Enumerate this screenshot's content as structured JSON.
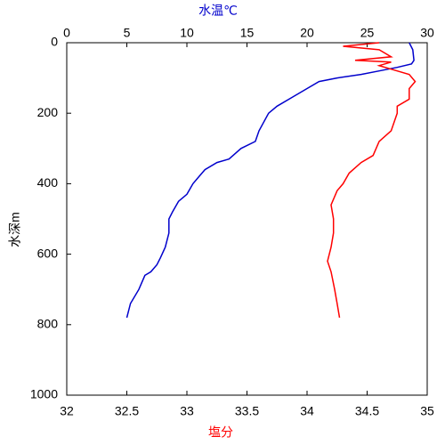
{
  "chart_data": {
    "type": "profile",
    "y_label": "水深m",
    "x2_label": "水温℃",
    "x_label": "塩分",
    "ylim": [
      0,
      1000
    ],
    "yticks": [
      0,
      200,
      400,
      600,
      800,
      1000
    ],
    "y_inverted": true,
    "x2lim": [
      0,
      30
    ],
    "x2ticks": [
      0,
      5,
      10,
      15,
      20,
      25,
      30
    ],
    "xlim": [
      32,
      35
    ],
    "xticks": [
      32,
      32.5,
      33,
      33.5,
      34,
      34.5,
      35
    ],
    "series": [
      {
        "color": "#0000cc",
        "axis": "x2",
        "depth": [
          0,
          20,
          50,
          60,
          70,
          80,
          90,
          100,
          110,
          130,
          160,
          180,
          200,
          250,
          280,
          300,
          330,
          340,
          360,
          380,
          400,
          430,
          450,
          480,
          500,
          540,
          580,
          610,
          630,
          650,
          660,
          700,
          740,
          780
        ],
        "values": [
          28.5,
          28.8,
          28.9,
          28.7,
          27.5,
          26,
          24.5,
          22.5,
          21,
          20,
          18.5,
          17.5,
          16.8,
          16,
          15.7,
          14.5,
          13.5,
          12.5,
          11.5,
          11,
          10.5,
          10,
          9.3,
          8.8,
          8.5,
          8.5,
          8.2,
          7.8,
          7.5,
          7,
          6.5,
          6,
          5.3,
          5
        ]
      },
      {
        "color": "#ff0000",
        "axis": "x",
        "depth": [
          0,
          10,
          20,
          40,
          50,
          55,
          65,
          75,
          90,
          110,
          130,
          160,
          180,
          200,
          250,
          280,
          320,
          340,
          370,
          400,
          420,
          460,
          500,
          540,
          580,
          620,
          650,
          700,
          740,
          780
        ],
        "values": [
          34.6,
          34.3,
          34.6,
          34.7,
          34.4,
          34.7,
          34.6,
          34.7,
          34.85,
          34.9,
          34.85,
          34.85,
          34.75,
          34.75,
          34.7,
          34.6,
          34.55,
          34.45,
          34.35,
          34.3,
          34.25,
          34.2,
          34.22,
          34.22,
          34.2,
          34.17,
          34.2,
          34.23,
          34.25,
          34.27
        ]
      }
    ]
  }
}
